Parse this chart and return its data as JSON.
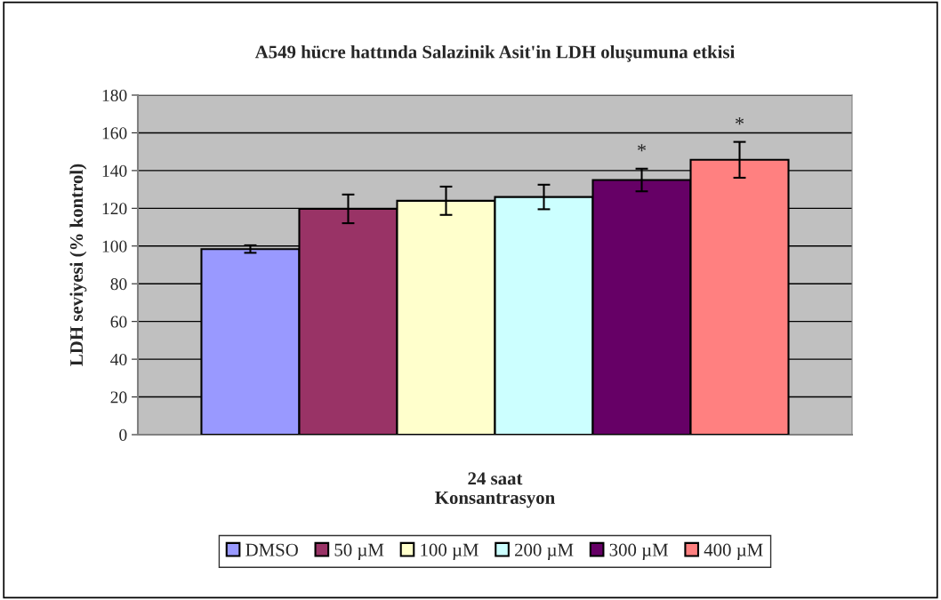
{
  "chart_data": {
    "type": "bar",
    "title": "A549 hücre hattında Salazinik Asit'in LDH oluşumuna etkisi",
    "xlabel": "Konsantrasyon",
    "ylabel": "LDH seviyesi (% kontrol)",
    "categories": [
      "24 saat"
    ],
    "series": [
      {
        "name": "DMSO",
        "color": "#9999ff",
        "values": [
          98.4
        ],
        "errors": [
          2
        ]
      },
      {
        "name": "50 µM",
        "color": "#993366",
        "values": [
          119.7
        ],
        "errors": [
          7.6
        ]
      },
      {
        "name": "100 µM",
        "color": "#ffffcc",
        "values": [
          124
        ],
        "errors": [
          7.5
        ]
      },
      {
        "name": "200 µM",
        "color": "#ccffff",
        "values": [
          126
        ],
        "errors": [
          6.5
        ]
      },
      {
        "name": "300 µM",
        "color": "#660066",
        "values": [
          135
        ],
        "errors": [
          6
        ],
        "value_labels": [
          "*"
        ]
      },
      {
        "name": "400 µM",
        "color": "#ff8080",
        "values": [
          145.7
        ],
        "errors": [
          9.5
        ],
        "value_labels": [
          "*"
        ]
      }
    ],
    "ylim": [
      0,
      180
    ],
    "yticks": [
      0,
      20,
      40,
      60,
      80,
      100,
      120,
      140,
      160,
      180
    ],
    "grid": "y",
    "legend": "bottom"
  }
}
